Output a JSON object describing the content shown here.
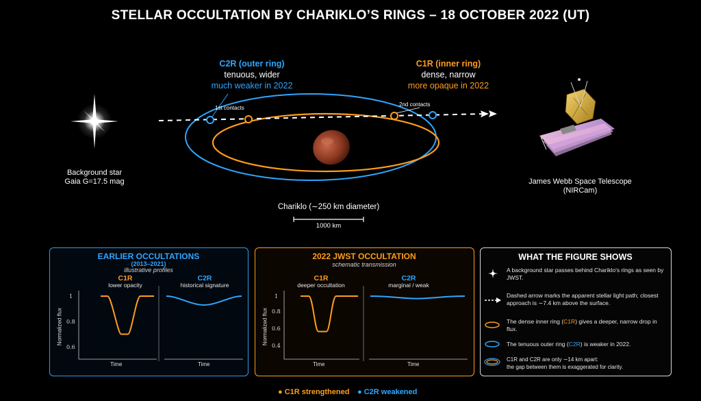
{
  "title": "STELLAR OCCULTATION BY CHARIKLO’S RINGS – 18 OCTOBER 2022 (UT)",
  "scene": {
    "c2r": {
      "name": "C2R (outer ring)",
      "desc": "tenuous, wider",
      "note": "much weaker in 2022"
    },
    "c1r": {
      "name": "C1R (inner ring)",
      "desc": "dense, narrow",
      "note": "more opaque in 2022"
    },
    "first_contacts": "1st contacts",
    "second_contacts": "2nd contacts",
    "star_label_1": "Background star",
    "star_label_2": "Gaia G=17.5 mag",
    "telescope_label_1": "James Webb Space Telescope",
    "telescope_label_2": "(NIRCam)",
    "body_label": "Chariklo (∼250 km diameter)",
    "scale_label": "1000 km"
  },
  "panels": {
    "earlier": {
      "title": "EARLIER OCCULTATIONS",
      "years": "(2013–2021)",
      "subtitle": "illustrative profiles",
      "c1r_label": "C1R",
      "c1r_sub": "lower opacity",
      "c2r_label": "C2R",
      "c2r_sub": "historical signature",
      "y_label": "Normalized flux",
      "x_label": "Time",
      "y_ticks": [
        "1",
        "0.8",
        "0.6"
      ],
      "c1r_min_flux": 0.7,
      "c2r_min_flux": 0.93
    },
    "jwst": {
      "title": "2022 JWST OCCULTATION",
      "subtitle": "schematic transmission",
      "c1r_label": "C1R",
      "c1r_sub": "deeper occultation",
      "c2r_label": "C2R",
      "c2r_sub": "marginal / weak",
      "y_label": "Normalized flux",
      "x_label": "Time",
      "y_ticks": [
        "1",
        "0.8",
        "0.6",
        "0.4"
      ],
      "c1r_min_flux": 0.57,
      "c2r_min_flux": 0.97
    },
    "legend": {
      "title": "WHAT THE FIGURE SHOWS",
      "items": [
        {
          "icon": "star-icon",
          "text": "A background star passes behind Chariklo's rings as seen by JWST."
        },
        {
          "icon": "dashed-arrow-icon",
          "text": "Dashed arrow marks the apparent stellar light path; closest approach is ∼7.4 km above the surface."
        },
        {
          "icon": "orange-ring-icon",
          "text_a": "The dense inner ring (",
          "hl": "C1R",
          "text_b": ") gives a deeper, narrow drop in flux."
        },
        {
          "icon": "blue-ring-icon",
          "text_a": "The tenuous outer ring (",
          "hl": "C2R",
          "text_b": ") is weaker in 2022."
        },
        {
          "icon": "double-ring-icon",
          "text_1": "C1R and C2R are only ∼14 km apart:",
          "text_2": "the gap between them is exaggerated for clarity."
        }
      ]
    }
  },
  "footer": {
    "c1r": "C1R strengthened",
    "c2r": "C2R weakened"
  },
  "colors": {
    "c1r": "#ff9d1c",
    "c2r": "#2fa6ff",
    "background": "#000000"
  }
}
